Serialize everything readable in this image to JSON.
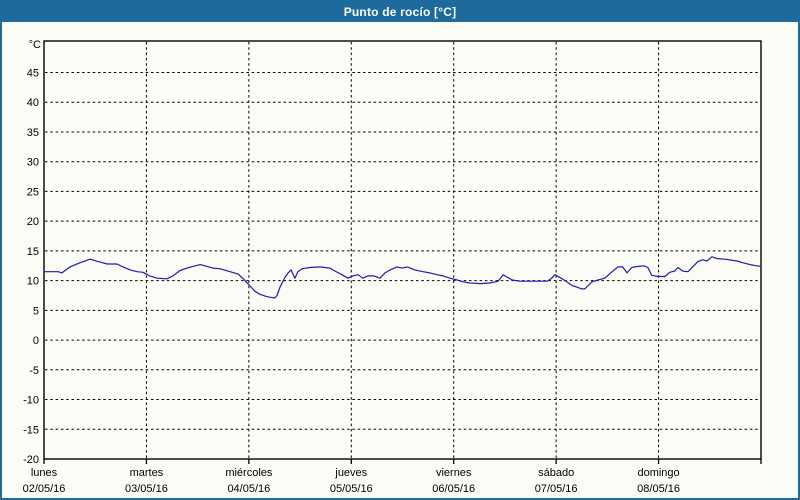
{
  "window": {
    "title": "Punto de rocío [°C]"
  },
  "colors": {
    "frame": "#1d6a9d",
    "titlebar_bg": "#1d6a9d",
    "titlebar_text": "#ffffff",
    "background": "#fcfcf6",
    "plot_border": "#000000",
    "gridline": "#000000",
    "line": "#1c1cb4"
  },
  "chart_data": {
    "type": "line",
    "title": "Punto de rocío [°C]",
    "ylabel": "°C",
    "ylim": [
      -20,
      50.3
    ],
    "yticks": [
      45,
      40,
      35,
      30,
      25,
      20,
      15,
      10,
      5,
      0,
      -5,
      -10,
      -15,
      -20
    ],
    "grid": "dashed",
    "legend": "none",
    "x_axis": {
      "unit": "hours from Monday 00:00",
      "range": [
        0,
        168
      ],
      "day_tick_hours": [
        0,
        24,
        48,
        72,
        96,
        120,
        144,
        168
      ],
      "day_labels": [
        {
          "weekday": "lunes",
          "date": "02/05/16"
        },
        {
          "weekday": "martes",
          "date": "03/05/16"
        },
        {
          "weekday": "miércoles",
          "date": "04/05/16"
        },
        {
          "weekday": "jueves",
          "date": "05/05/16"
        },
        {
          "weekday": "viernes",
          "date": "06/05/16"
        },
        {
          "weekday": "sábado",
          "date": "07/05/16"
        },
        {
          "weekday": "domingo",
          "date": "08/05/16"
        }
      ]
    },
    "series": [
      {
        "name": "Punto de rocío",
        "color": "#1c1cb4",
        "points": [
          [
            0,
            11.5
          ],
          [
            3.3,
            11.5
          ],
          [
            4.2,
            11.3
          ],
          [
            6.1,
            12.3
          ],
          [
            8.4,
            13.0
          ],
          [
            10.8,
            13.6
          ],
          [
            12.7,
            13.2
          ],
          [
            14.8,
            12.8
          ],
          [
            17.1,
            12.8
          ],
          [
            18.5,
            12.3
          ],
          [
            20.2,
            11.8
          ],
          [
            21.8,
            11.5
          ],
          [
            23.2,
            11.4
          ],
          [
            24.8,
            10.8
          ],
          [
            26.5,
            10.4
          ],
          [
            28.8,
            10.3
          ],
          [
            30.2,
            10.8
          ],
          [
            31.9,
            11.7
          ],
          [
            33.5,
            12.1
          ],
          [
            34.9,
            12.4
          ],
          [
            36.6,
            12.7
          ],
          [
            38.2,
            12.4
          ],
          [
            39.6,
            12.1
          ],
          [
            41.2,
            12.0
          ],
          [
            43.6,
            11.5
          ],
          [
            45.5,
            11.1
          ],
          [
            47.1,
            10.0
          ],
          [
            48.3,
            9.1
          ],
          [
            49.4,
            8.2
          ],
          [
            50.6,
            7.7
          ],
          [
            51.8,
            7.4
          ],
          [
            53.0,
            7.2
          ],
          [
            54.1,
            7.1
          ],
          [
            54.6,
            7.5
          ],
          [
            55.3,
            8.9
          ],
          [
            56.0,
            9.9
          ],
          [
            56.5,
            10.6
          ],
          [
            57.2,
            11.3
          ],
          [
            57.9,
            11.8
          ],
          [
            58.8,
            10.4
          ],
          [
            59.5,
            11.5
          ],
          [
            60.5,
            12.0
          ],
          [
            62.3,
            12.2
          ],
          [
            64.7,
            12.3
          ],
          [
            67.0,
            12.1
          ],
          [
            68.2,
            11.6
          ],
          [
            69.8,
            11.0
          ],
          [
            71.2,
            10.4
          ],
          [
            72.4,
            10.8
          ],
          [
            73.6,
            11.0
          ],
          [
            74.7,
            10.4
          ],
          [
            75.9,
            10.8
          ],
          [
            77.3,
            10.8
          ],
          [
            78.7,
            10.4
          ],
          [
            79.9,
            11.3
          ],
          [
            81.1,
            11.8
          ],
          [
            82.7,
            12.3
          ],
          [
            83.9,
            12.1
          ],
          [
            85.1,
            12.3
          ],
          [
            86.9,
            11.8
          ],
          [
            88.8,
            11.5
          ],
          [
            90.4,
            11.3
          ],
          [
            92.1,
            11.0
          ],
          [
            93.5,
            10.8
          ],
          [
            95.1,
            10.4
          ],
          [
            96.8,
            10.1
          ],
          [
            98.2,
            9.8
          ],
          [
            99.8,
            9.6
          ],
          [
            102.2,
            9.5
          ],
          [
            104.5,
            9.6
          ],
          [
            106.4,
            9.9
          ],
          [
            107.6,
            11.0
          ],
          [
            108.5,
            10.6
          ],
          [
            109.7,
            10.1
          ],
          [
            111.5,
            9.9
          ],
          [
            115.0,
            9.9
          ],
          [
            117.9,
            9.9
          ],
          [
            118.8,
            10.3
          ],
          [
            119.7,
            11.0
          ],
          [
            121.4,
            10.3
          ],
          [
            122.5,
            9.8
          ],
          [
            123.7,
            9.2
          ],
          [
            124.9,
            8.9
          ],
          [
            126.0,
            8.6
          ],
          [
            126.7,
            8.6
          ],
          [
            127.4,
            9.1
          ],
          [
            128.4,
            9.8
          ],
          [
            129.8,
            10.1
          ],
          [
            131.4,
            10.4
          ],
          [
            133.1,
            11.5
          ],
          [
            134.5,
            12.3
          ],
          [
            135.6,
            12.3
          ],
          [
            136.6,
            11.3
          ],
          [
            137.7,
            12.2
          ],
          [
            139.2,
            12.4
          ],
          [
            140.6,
            12.5
          ],
          [
            141.5,
            12.2
          ],
          [
            142.4,
            10.9
          ],
          [
            143.8,
            10.7
          ],
          [
            145.5,
            10.7
          ],
          [
            146.6,
            11.4
          ],
          [
            147.8,
            11.6
          ],
          [
            148.5,
            12.2
          ],
          [
            149.7,
            11.6
          ],
          [
            150.9,
            11.5
          ],
          [
            152.0,
            12.3
          ],
          [
            153.2,
            13.2
          ],
          [
            154.4,
            13.5
          ],
          [
            155.3,
            13.3
          ],
          [
            156.5,
            14.0
          ],
          [
            157.7,
            13.7
          ],
          [
            159.6,
            13.6
          ],
          [
            162.4,
            13.3
          ],
          [
            163.8,
            13.0
          ],
          [
            165.4,
            12.7
          ],
          [
            167.0,
            12.5
          ],
          [
            168.0,
            12.4
          ]
        ]
      }
    ]
  }
}
